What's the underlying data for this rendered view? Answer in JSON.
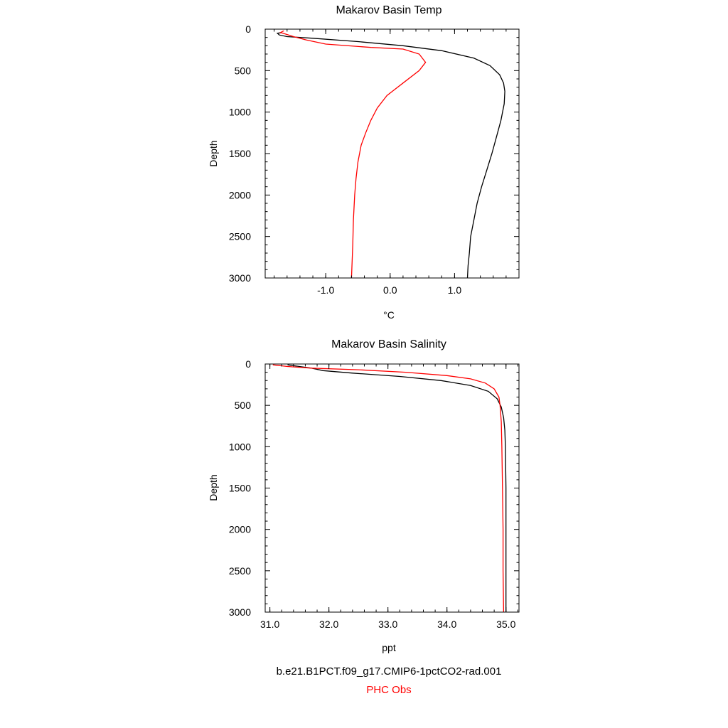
{
  "legend": {
    "model_label": "b.e21.B1PCT.f09_g17.CMIP6-1pctCO2-rad.001",
    "obs_label": "PHC Obs",
    "model_color": "#000000",
    "obs_color": "#ff0000"
  },
  "chart_data": [
    {
      "type": "line",
      "title": "Makarov Basin Temp",
      "xlabel": "°C",
      "ylabel": "Depth",
      "xlim": [
        -1.94,
        2.0
      ],
      "ylim": [
        3000,
        0
      ],
      "y_inverted": true,
      "xticks": [
        -1.0,
        0.0,
        1.0
      ],
      "xtick_labels": [
        "-1.0",
        "0.0",
        "1.0"
      ],
      "yticks": [
        0,
        500,
        1000,
        1500,
        2000,
        2500,
        3000
      ],
      "ytick_labels": [
        "0",
        "500",
        "1000",
        "1500",
        "2000",
        "2500",
        "3000"
      ],
      "grid": false,
      "series": [
        {
          "name": "b.e21.B1PCT.f09_g17.CMIP6-1pctCO2-rad.001",
          "color": "#000000",
          "points": [
            [
              -1.68,
              40
            ],
            [
              -1.75,
              50
            ],
            [
              -1.72,
              70
            ],
            [
              -1.6,
              90
            ],
            [
              -1.2,
              110
            ],
            [
              -0.5,
              150
            ],
            [
              0.2,
              200
            ],
            [
              0.8,
              260
            ],
            [
              1.3,
              350
            ],
            [
              1.55,
              440
            ],
            [
              1.7,
              550
            ],
            [
              1.76,
              650
            ],
            [
              1.78,
              750
            ],
            [
              1.77,
              900
            ],
            [
              1.72,
              1100
            ],
            [
              1.65,
              1300
            ],
            [
              1.58,
              1500
            ],
            [
              1.5,
              1700
            ],
            [
              1.42,
              1900
            ],
            [
              1.35,
              2100
            ],
            [
              1.3,
              2300
            ],
            [
              1.25,
              2500
            ],
            [
              1.23,
              2700
            ],
            [
              1.21,
              2850
            ],
            [
              1.2,
              3000
            ]
          ]
        },
        {
          "name": "PHC Obs",
          "color": "#ff0000",
          "points": [
            [
              -1.65,
              20
            ],
            [
              -1.7,
              40
            ],
            [
              -1.62,
              60
            ],
            [
              -1.5,
              90
            ],
            [
              -1.3,
              130
            ],
            [
              -1.0,
              180
            ],
            [
              -0.3,
              220
            ],
            [
              0.2,
              240
            ],
            [
              0.45,
              300
            ],
            [
              0.55,
              400
            ],
            [
              0.45,
              500
            ],
            [
              0.2,
              650
            ],
            [
              -0.05,
              800
            ],
            [
              -0.2,
              950
            ],
            [
              -0.3,
              1100
            ],
            [
              -0.38,
              1250
            ],
            [
              -0.45,
              1400
            ],
            [
              -0.5,
              1600
            ],
            [
              -0.53,
              1800
            ],
            [
              -0.55,
              2000
            ],
            [
              -0.57,
              2300
            ],
            [
              -0.58,
              2600
            ],
            [
              -0.6,
              3000
            ]
          ]
        }
      ]
    },
    {
      "type": "line",
      "title": "Makarov Basin Salinity",
      "xlabel": "ppt",
      "ylabel": "Depth",
      "xlim": [
        30.92,
        35.22
      ],
      "ylim": [
        3000,
        0
      ],
      "y_inverted": true,
      "xticks": [
        31.0,
        32.0,
        33.0,
        34.0,
        35.0
      ],
      "xtick_labels": [
        "31.0",
        "32.0",
        "33.0",
        "34.0",
        "35.0"
      ],
      "yticks": [
        0,
        500,
        1000,
        1500,
        2000,
        2500,
        3000
      ],
      "ytick_labels": [
        "0",
        "500",
        "1000",
        "1500",
        "2000",
        "2500",
        "3000"
      ],
      "grid": false,
      "series": [
        {
          "name": "b.e21.B1PCT.f09_g17.CMIP6-1pctCO2-rad.001",
          "color": "#000000",
          "points": [
            [
              31.3,
              10
            ],
            [
              31.5,
              30
            ],
            [
              31.7,
              50
            ],
            [
              31.9,
              80
            ],
            [
              32.4,
              110
            ],
            [
              33.2,
              150
            ],
            [
              33.9,
              200
            ],
            [
              34.4,
              260
            ],
            [
              34.7,
              330
            ],
            [
              34.85,
              420
            ],
            [
              34.92,
              520
            ],
            [
              34.96,
              650
            ],
            [
              34.98,
              800
            ],
            [
              34.99,
              1000
            ],
            [
              35.0,
              1500
            ],
            [
              35.0,
              2000
            ],
            [
              35.0,
              2500
            ],
            [
              35.0,
              3000
            ]
          ]
        },
        {
          "name": "PHC Obs",
          "color": "#ff0000",
          "points": [
            [
              31.05,
              10
            ],
            [
              31.3,
              30
            ],
            [
              31.7,
              50
            ],
            [
              32.5,
              70
            ],
            [
              33.3,
              100
            ],
            [
              34.0,
              140
            ],
            [
              34.4,
              180
            ],
            [
              34.65,
              230
            ],
            [
              34.8,
              300
            ],
            [
              34.88,
              400
            ],
            [
              34.9,
              500
            ],
            [
              34.92,
              700
            ],
            [
              34.93,
              1000
            ],
            [
              34.94,
              1500
            ],
            [
              34.95,
              2000
            ],
            [
              34.95,
              2500
            ],
            [
              34.96,
              3000
            ]
          ]
        }
      ]
    }
  ]
}
